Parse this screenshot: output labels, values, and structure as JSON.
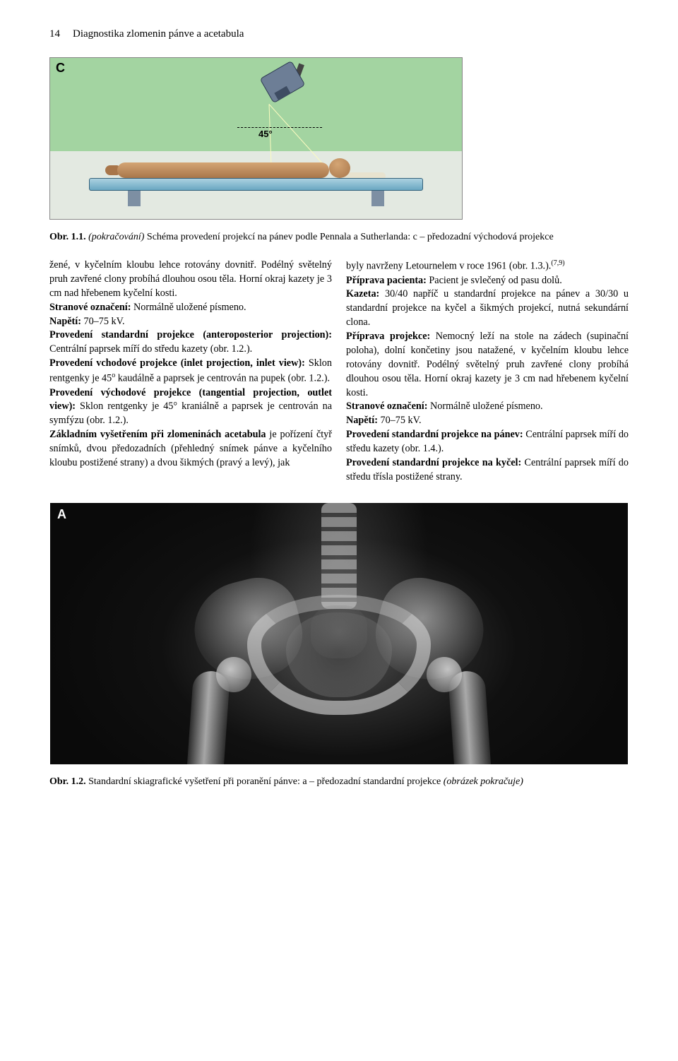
{
  "header": {
    "page_number": "14",
    "chapter_title": "Diagnostika zlomenin pánve a acetabula"
  },
  "figure_c": {
    "label": "C",
    "angle_text": "45°",
    "caption_prefix": "Obr. 1.1.",
    "caption_detail": "(pokračování)",
    "caption_rest": " Schéma provedení projekcí na pánev podle Pennala a Sutherlanda: c – předozadní východová projekce"
  },
  "left_column": {
    "p1_part1": "žené, v kyčelním kloubu lehce rotovány dovnitř. Podélný světelný pruh zavřené clony probíhá dlouhou osou těla. Horní okraj kazety je 3 cm nad hřebenem kyčelní kosti.",
    "p1_bold1": "Stranové označení:",
    "p1_afterbold1": " Normálně uložené písmeno.",
    "p1_bold2": "Napětí:",
    "p1_afterbold2": " 70–75 kV.",
    "p1_bold3": "Provedení standardní projekce (anteroposterior projection):",
    "p1_afterbold3": " Centrální paprsek míří do středu kazety (obr. 1.2.).",
    "p1_bold4": "Provedení vchodové projekce (inlet projection, inlet view):",
    "p1_afterbold4": " Sklon rentgenky je 45",
    "p1_degree_sup": "o",
    "p1_after_sup": " kaudálně a paprsek je centrován na pupek (obr. 1.2.).",
    "p1_bold5": "Provedení východové projekce (tangential projection, outlet view):",
    "p1_afterbold5": " Sklon rentgenky je 45° kraniálně a paprsek je centrován na symfýzu (obr. 1.2.).",
    "p2_bold": "Základním vyšetřením při zlomeninách acetabula",
    "p2_rest": " je pořízení čtyř snímků, dvou předozadních (přehledný snímek pánve a kyčelního kloubu postižené strany) a dvou šikmých (pravý a levý), jak"
  },
  "right_column": {
    "r1": "byly navrženy Letournelem v roce 1961 (obr. 1.3.).",
    "r1_sup": "(7,9)",
    "r2_bold": "Příprava pacienta:",
    "r2_rest": " Pacient je svlečený od pasu dolů.",
    "r3_bold": "Kazeta:",
    "r3_rest": " 30/40 napříč u standardní projekce na pánev a 30/30 u standardní projekce na kyčel a šikmých projekcí, nutná sekundární clona.",
    "r4_bold": "Příprava projekce:",
    "r4_rest": " Nemocný leží na stole na zádech (supinační poloha), dolní končetiny jsou natažené, v kyčelním kloubu lehce rotovány dovnitř. Podélný světelný pruh zavřené clony probíhá dlouhou osou těla. Horní okraj kazety je 3 cm nad hřebenem kyčelní kosti.",
    "r5_bold": "Stranové označení:",
    "r5_rest": " Normálně uložené písmeno.",
    "r6_bold": "Napětí:",
    "r6_rest": " 70–75 kV.",
    "r7_bold": "Provedení standardní projekce na pánev:",
    "r7_rest": " Centrální paprsek míří do středu kazety (obr. 1.4.).",
    "r8_bold": "Provedení standardní projekce na kyčel:",
    "r8_rest": " Centrální paprsek míří do středu třísla postižené strany."
  },
  "figure_a": {
    "label": "A",
    "caption_prefix": "Obr. 1.2.",
    "caption_rest": " Standardní skiagrafické vyšetření při poranění pánve: a – předozadní standardní projekce ",
    "caption_italic": "(obrázek pokračuje)"
  }
}
